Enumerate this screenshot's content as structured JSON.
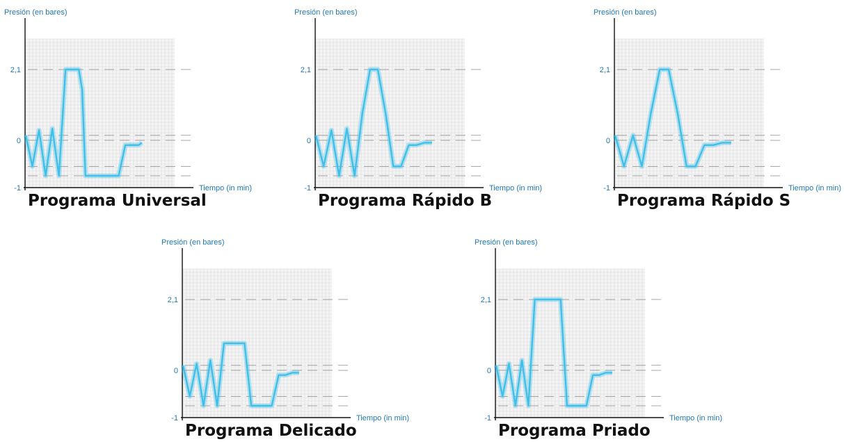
{
  "colors": {
    "accent": "#1f78b4",
    "line": "#3ec0ea",
    "grid": "#d9d9d9",
    "title": "#111111"
  },
  "common": {
    "ylabel": "Presión (en bares)",
    "xlabel": "Tiempo (in min)",
    "yticks": [
      "2,1",
      "0",
      "-1"
    ]
  },
  "chart_data": [
    {
      "type": "line",
      "title": "Programa Universal",
      "xlabel": "Tiempo (in min)",
      "ylabel": "Presión (en bares)",
      "ylim": [
        -1,
        2.1
      ],
      "ref_lines": [
        2.1,
        0.15,
        0,
        -0.55,
        -0.75
      ],
      "x": [
        0,
        1,
        2,
        3,
        4,
        5,
        6,
        7,
        8,
        8.5,
        9,
        10,
        11,
        12,
        14,
        15,
        16,
        17,
        17.5
      ],
      "y": [
        0.15,
        -0.55,
        0.3,
        -0.75,
        0.35,
        -0.75,
        2.1,
        2.1,
        2.1,
        1.5,
        -0.75,
        -0.75,
        -0.75,
        -0.75,
        -0.75,
        -0.1,
        -0.1,
        -0.1,
        -0.05
      ]
    },
    {
      "type": "line",
      "title": "Programa Rápido B",
      "xlabel": "Tiempo (in min)",
      "ylabel": "Presión (en bares)",
      "ylim": [
        -1,
        2.1
      ],
      "ref_lines": [
        2.1,
        0.15,
        0,
        -0.55,
        -0.75
      ],
      "x": [
        0,
        1,
        2,
        3,
        4,
        5,
        6,
        7,
        8,
        9,
        10,
        11,
        12,
        13,
        14,
        15
      ],
      "y": [
        0.15,
        -0.55,
        0.3,
        -0.75,
        0.35,
        -0.75,
        0.8,
        2.1,
        2.1,
        0.8,
        -0.55,
        -0.55,
        -0.1,
        -0.1,
        -0.05,
        -0.05
      ]
    },
    {
      "type": "line",
      "title": "Programa Rápido S",
      "xlabel": "Tiempo (in min)",
      "ylabel": "Presión (en bares)",
      "ylim": [
        -1,
        2.1
      ],
      "ref_lines": [
        2.1,
        0.15,
        0,
        -0.55,
        -0.75
      ],
      "x": [
        0,
        1,
        2,
        3,
        4,
        5,
        6,
        7,
        8,
        9,
        10,
        11,
        12,
        13
      ],
      "y": [
        0.15,
        -0.55,
        0.15,
        -0.55,
        0.8,
        2.1,
        2.1,
        0.8,
        -0.55,
        -0.55,
        -0.1,
        -0.1,
        -0.05,
        -0.05
      ]
    },
    {
      "type": "line",
      "title": "Programa Delicado",
      "xlabel": "Tiempo (in min)",
      "ylabel": "Presión (en bares)",
      "ylim": [
        -1,
        2.1
      ],
      "ref_lines": [
        2.1,
        0.15,
        0,
        -0.55,
        -0.75
      ],
      "x": [
        0,
        1,
        2,
        3,
        4,
        5,
        6,
        7,
        8,
        9,
        10,
        11,
        12,
        13,
        14,
        15,
        16,
        17
      ],
      "y": [
        0.15,
        -0.55,
        0.2,
        -0.75,
        0.3,
        -0.75,
        0.8,
        0.8,
        0.8,
        0.8,
        -0.75,
        -0.75,
        -0.75,
        -0.75,
        -0.1,
        -0.1,
        -0.05,
        -0.05
      ]
    },
    {
      "type": "line",
      "title": "Programa Priado",
      "xlabel": "Tiempo (in min)",
      "ylabel": "Presión (en bares)",
      "ylim": [
        -1,
        2.1
      ],
      "ref_lines": [
        2.1,
        0.15,
        0,
        -0.55,
        -0.75
      ],
      "x": [
        0,
        1,
        2,
        3,
        4,
        5,
        6,
        7,
        8,
        9,
        10,
        11,
        12,
        13,
        14,
        15,
        16,
        17,
        18
      ],
      "y": [
        0.15,
        -0.55,
        0.2,
        -0.75,
        0.3,
        -0.75,
        2.1,
        2.1,
        2.1,
        2.1,
        2.1,
        -0.75,
        -0.75,
        -0.75,
        -0.75,
        -0.1,
        -0.1,
        -0.05,
        -0.05
      ]
    }
  ]
}
